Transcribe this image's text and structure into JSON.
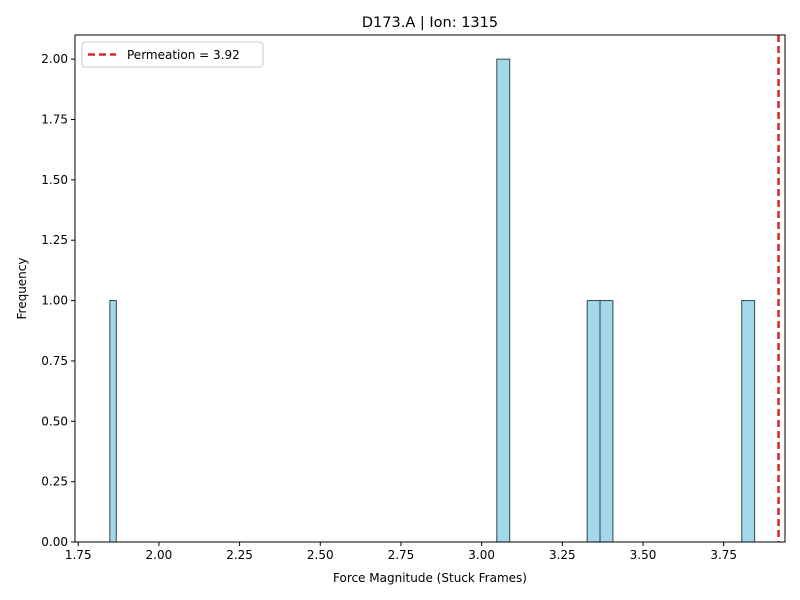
{
  "chart_data": {
    "type": "bar",
    "subtype": "histogram",
    "title": "D173.A | Ion: 1315",
    "xlabel": "Force Magnitude (Stuck Frames)",
    "ylabel": "Frequency",
    "xlim": [
      1.74,
      3.94
    ],
    "ylim": [
      0,
      2.1
    ],
    "x_ticks": [
      "1.75",
      "2.00",
      "2.25",
      "2.50",
      "2.75",
      "3.00",
      "3.25",
      "3.50",
      "3.75"
    ],
    "x_tick_values": [
      1.75,
      2.0,
      2.25,
      2.5,
      2.75,
      3.0,
      3.25,
      3.5,
      3.75
    ],
    "y_ticks": [
      "0.00",
      "0.25",
      "0.50",
      "0.75",
      "1.00",
      "1.25",
      "1.50",
      "1.75",
      "2.00"
    ],
    "y_tick_values": [
      0,
      0.25,
      0.5,
      0.75,
      1.0,
      1.25,
      1.5,
      1.75,
      2.0
    ],
    "bins": [
      {
        "start": 1.848,
        "end": 1.8679,
        "count": 1
      },
      {
        "start": 3.047,
        "end": 3.0869,
        "count": 2
      },
      {
        "start": 3.327,
        "end": 3.3669,
        "count": 1
      },
      {
        "start": 3.3669,
        "end": 3.4068,
        "count": 1
      },
      {
        "start": 3.806,
        "end": 3.8459,
        "count": 1
      }
    ],
    "bar_fill": "#a3d8ea",
    "bar_edge": "#2e4a52",
    "reference_line": {
      "x": 3.92,
      "label": "Permeation = 3.92",
      "color": "#d62728",
      "style": "dashed"
    },
    "legend": {
      "position": "top-left",
      "entries": [
        "Permeation = 3.92"
      ]
    },
    "grid": false
  }
}
